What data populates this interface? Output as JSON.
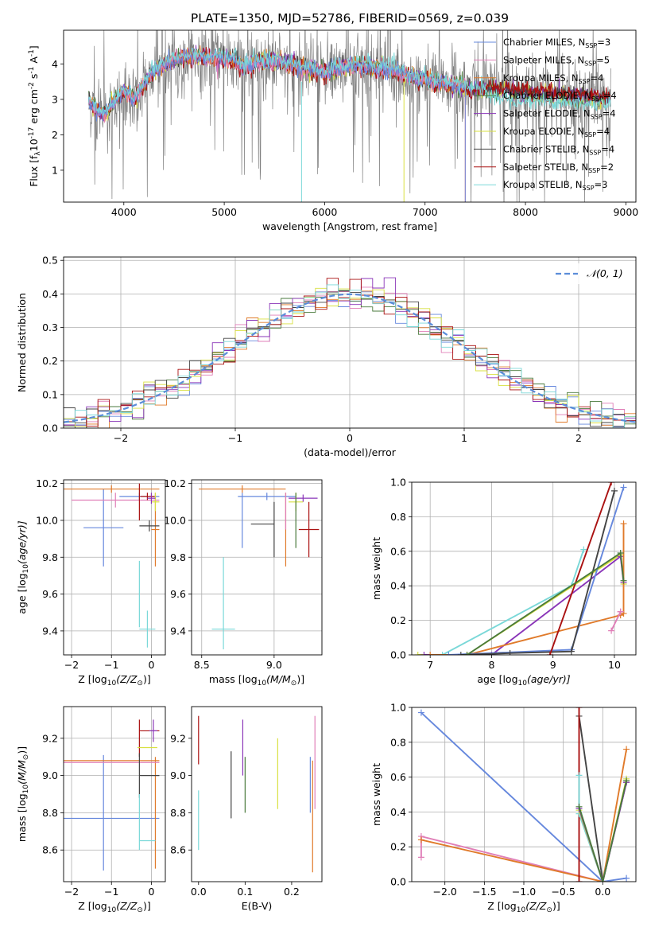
{
  "title": "PLATE=1350, MJD=52786, FIBERID=0569, z=0.039",
  "colors": {
    "Chabrier MILES": "#6688dd",
    "Salpeter MILES": "#e07fb8",
    "Kroupa MILES": "#e07a2a",
    "Chabrier ELODIE": "#4a7a3c",
    "Salpeter ELODIE": "#8a35b8",
    "Kroupa ELODIE": "#d8e040",
    "Chabrier STELIB": "#444444",
    "Salpeter STELIB": "#aa1111",
    "Kroupa STELIB": "#7ad8d8",
    "data": "#7f7f7f",
    "normal": "#5b8dd9",
    "grid": "#b0b0b0"
  },
  "chart_data": [
    {
      "id": "spectrum",
      "type": "line",
      "title": "PLATE=1350, MJD=52786, FIBERID=0569, z=0.039",
      "xlabel": "wavelength [Angstrom, rest frame]",
      "ylabel_pre": "Flux [f",
      "ylabel_sub": "λ",
      "ylabel_mid": "10",
      "ylabel_sup": "-17",
      "ylabel_post": " erg cm",
      "ylabel_sup2": "-2",
      "ylabel_post2": " s",
      "ylabel_sup3": "-1",
      "ylabel_post3": " A",
      "ylabel_sup4": "-1",
      "ylabel_end": "]",
      "xlim": [
        3400,
        9100
      ],
      "ylim": [
        0.1,
        4.95
      ],
      "xticks": [
        4000,
        5000,
        6000,
        7000,
        8000,
        9000
      ],
      "yticks": [
        1,
        2,
        3,
        4
      ],
      "grid": false,
      "legend_position": "top-right",
      "legend": [
        {
          "pre": "Chabrier MILES, N",
          "sub": "SSP",
          "post": "=3",
          "model": "Chabrier MILES"
        },
        {
          "pre": "Salpeter MILES, N",
          "sub": "SSP",
          "post": "=5",
          "model": "Salpeter MILES"
        },
        {
          "pre": "Kroupa MILES, N",
          "sub": "SSP",
          "post": "=4",
          "model": "Kroupa MILES"
        },
        {
          "pre": "Chabrier ELODIE, N",
          "sub": "SSP",
          "post": "=4",
          "model": "Chabrier ELODIE"
        },
        {
          "pre": "Salpeter ELODIE, N",
          "sub": "SSP",
          "post": "=4",
          "model": "Salpeter ELODIE"
        },
        {
          "pre": "Kroupa ELODIE, N",
          "sub": "SSP",
          "post": "=4",
          "model": "Kroupa ELODIE"
        },
        {
          "pre": "Chabrier STELIB, N",
          "sub": "SSP",
          "post": "=4",
          "model": "Chabrier STELIB"
        },
        {
          "pre": "Salpeter STELIB, N",
          "sub": "SSP",
          "post": "=2",
          "model": "Salpeter STELIB"
        },
        {
          "pre": "Kroupa STELIB, N",
          "sub": "SSP",
          "post": "=3",
          "model": "Kroupa STELIB"
        }
      ],
      "data_range": [
        3650,
        8850
      ],
      "continuum": [
        [
          3650,
          2.9
        ],
        [
          3800,
          2.55
        ],
        [
          4000,
          3.25
        ],
        [
          4100,
          3.0
        ],
        [
          4300,
          3.8
        ],
        [
          4500,
          4.1
        ],
        [
          4700,
          4.2
        ],
        [
          4900,
          4.15
        ],
        [
          5100,
          4.1
        ],
        [
          5200,
          3.9
        ],
        [
          5400,
          4.1
        ],
        [
          5600,
          4.0
        ],
        [
          5800,
          3.85
        ],
        [
          6000,
          3.75
        ],
        [
          6300,
          3.95
        ],
        [
          6600,
          3.85
        ],
        [
          6900,
          3.6
        ],
        [
          7100,
          3.45
        ],
        [
          7400,
          3.3
        ],
        [
          7700,
          3.25
        ],
        [
          8000,
          3.15
        ],
        [
          8300,
          3.1
        ],
        [
          8600,
          3.05
        ],
        [
          8850,
          3.0
        ]
      ],
      "model_ends": {
        "Kroupa MILES": 7400,
        "Salpeter MILES": 7400,
        "Chabrier MILES": 7400
      }
    },
    {
      "id": "residuals",
      "type": "histogram",
      "xlabel": "(data-model)/error",
      "ylabel": "Normed distribution",
      "xlim": [
        -2.5,
        2.5
      ],
      "ylim": [
        0,
        0.51
      ],
      "xticks": [
        -2,
        -1,
        0,
        1,
        2
      ],
      "yticks": [
        0.0,
        0.1,
        0.2,
        0.3,
        0.4,
        0.5
      ],
      "grid": true,
      "legend_position": "top-right",
      "legend": [
        {
          "pre": "𝒩(0, 1)"
        }
      ],
      "bin_width": 0.1
    },
    {
      "id": "age-Z",
      "type": "errorbar",
      "xlabel_pre": "Z [log",
      "xlabel_sub": "10",
      "xlabel_post": "(Z/Z",
      "xlabel_sub2": "⊙",
      "xlabel_end": ")]",
      "ylabel_pre": "age  [log",
      "ylabel_sub": "10",
      "ylabel_post": "(age/yr)]",
      "xlim": [
        -2.2,
        0.35
      ],
      "ylim": [
        9.27,
        10.22
      ],
      "xticks": [
        -2,
        -1,
        0
      ],
      "yticks": [
        9.4,
        9.6,
        9.8,
        10.0,
        10.2
      ],
      "grid": true,
      "points": [
        {
          "model": "Chabrier MILES",
          "x": -0.3,
          "xerr": 0.5,
          "y": 10.13,
          "yerr": 0.02
        },
        {
          "model": "Chabrier MILES",
          "x": -1.2,
          "xerr": 0.5,
          "y": 9.96,
          "yerr": 0.21
        },
        {
          "model": "Salpeter MILES",
          "x": -0.9,
          "xerr": 1.1,
          "y": 10.11,
          "yerr": 0.04
        },
        {
          "model": "Kroupa MILES",
          "x": -1.0,
          "xerr": 1.2,
          "y": 10.17,
          "yerr": 0.02
        },
        {
          "model": "Kroupa MILES",
          "x": 0.1,
          "xerr": 0.1,
          "y": 9.95,
          "yerr": 0.2
        },
        {
          "model": "Salpeter STELIB",
          "x": -0.3,
          "xerr": 0.0,
          "y": 10.1,
          "yerr": 0.1
        },
        {
          "model": "Salpeter STELIB",
          "x": -0.1,
          "xerr": 0.18,
          "y": 10.13,
          "yerr": 0.02
        },
        {
          "model": "Chabrier STELIB",
          "x": -0.05,
          "xerr": 0.25,
          "y": 9.97,
          "yerr": 0.03
        },
        {
          "model": "Kroupa STELIB",
          "x": -0.1,
          "xerr": 0.2,
          "y": 9.41,
          "yerr": 0.1
        },
        {
          "model": "Kroupa STELIB",
          "x": -0.3,
          "xerr": 0.0,
          "y": 9.6,
          "yerr": 0.18
        },
        {
          "model": "Kroupa ELODIE",
          "x": 0.1,
          "xerr": 0.1,
          "y": 10.1,
          "yerr": 0.05
        },
        {
          "model": "Salpeter ELODIE",
          "x": 0.0,
          "xerr": 0.1,
          "y": 10.12,
          "yerr": 0.03
        }
      ]
    },
    {
      "id": "age-mass",
      "type": "errorbar",
      "xlabel_pre": "mass [log",
      "xlabel_sub": "10",
      "xlabel_post": "(M/M",
      "xlabel_sub2": "⊙",
      "xlabel_end": ")]",
      "ylabel": "",
      "xlim": [
        8.43,
        9.33
      ],
      "ylim": [
        9.27,
        10.22
      ],
      "xticks": [
        8.5,
        9.0
      ],
      "yticks": [
        9.4,
        9.6,
        9.8,
        10.0,
        10.2
      ],
      "grid": true,
      "points": [
        {
          "model": "Chabrier MILES",
          "x": 8.78,
          "xerr": 0.0,
          "y": 10.0,
          "yerr": 0.15
        },
        {
          "model": "Chabrier MILES",
          "x": 8.95,
          "xerr": 0.2,
          "y": 10.13,
          "yerr": 0.02
        },
        {
          "model": "Kroupa MILES",
          "x": 8.78,
          "xerr": 0.3,
          "y": 10.17,
          "yerr": 0.02
        },
        {
          "model": "Kroupa MILES",
          "x": 9.08,
          "xerr": 0.0,
          "y": 9.95,
          "yerr": 0.2
        },
        {
          "model": "Salpeter MILES",
          "x": 9.08,
          "xerr": 0.0,
          "y": 10.05,
          "yerr": 0.1
        },
        {
          "model": "Chabrier STELIB",
          "x": 8.92,
          "xerr": 0.08,
          "y": 9.98,
          "yerr": 0.0
        },
        {
          "model": "Chabrier STELIB",
          "x": 9.0,
          "xerr": 0.0,
          "y": 9.95,
          "yerr": 0.15
        },
        {
          "model": "Salpeter STELIB",
          "x": 9.24,
          "xerr": 0.07,
          "y": 9.95,
          "yerr": 0.15
        },
        {
          "model": "Salpeter ELODIE",
          "x": 9.2,
          "xerr": 0.1,
          "y": 10.12,
          "yerr": 0.02
        },
        {
          "model": "Kroupa ELODIE",
          "x": 9.15,
          "xerr": 0.05,
          "y": 10.1,
          "yerr": 0.05
        },
        {
          "model": "Chabrier ELODIE",
          "x": 9.15,
          "xerr": 0.0,
          "y": 10.0,
          "yerr": 0.15
        },
        {
          "model": "Kroupa STELIB",
          "x": 8.65,
          "xerr": 0.08,
          "y": 9.41,
          "yerr": 0.0
        },
        {
          "model": "Kroupa STELIB",
          "x": 8.65,
          "xerr": 0.0,
          "y": 9.55,
          "yerr": 0.25
        }
      ]
    },
    {
      "id": "mw-age",
      "type": "line",
      "xlabel_pre": "age  [log",
      "xlabel_sub": "10",
      "xlabel_post": "(age/yr)]",
      "ylabel": "mass weight",
      "xlim": [
        6.7,
        10.35
      ],
      "ylim": [
        0,
        1.0
      ],
      "xticks": [
        7,
        8,
        9,
        10
      ],
      "yticks": [
        0.0,
        0.2,
        0.4,
        0.6,
        0.8,
        1.0
      ],
      "grid": true,
      "series": [
        {
          "model": "Kroupa STELIB",
          "x": [
            7.2,
            9.3,
            9.5
          ],
          "y": [
            0.0,
            0.4,
            0.61
          ]
        },
        {
          "model": "Kroupa ELODIE",
          "x": [
            6.8,
            7.6,
            10.1,
            10.15
          ],
          "y": [
            0.0,
            0.0,
            0.58,
            0.41
          ]
        },
        {
          "model": "Salpeter ELODIE",
          "x": [
            6.9,
            8.0,
            10.1,
            10.15
          ],
          "y": [
            0.0,
            0.0,
            0.57,
            0.42
          ]
        },
        {
          "model": "Kroupa MILES",
          "x": [
            7.0,
            7.6,
            10.1,
            10.15,
            10.15
          ],
          "y": [
            0.0,
            0.0,
            0.23,
            0.24,
            0.76
          ]
        },
        {
          "model": "Salpeter MILES",
          "x": [
            9.95,
            10.1,
            10.1
          ],
          "y": [
            0.14,
            0.25,
            0.25
          ]
        },
        {
          "model": "Chabrier MILES",
          "x": [
            7.3,
            9.3,
            10.15
          ],
          "y": [
            0.0,
            0.03,
            0.97
          ]
        },
        {
          "model": "Chabrier STELIB",
          "x": [
            7.5,
            8.3,
            9.3,
            10.0
          ],
          "y": [
            0.0,
            0.01,
            0.02,
            0.95
          ]
        },
        {
          "model": "Salpeter STELIB",
          "x": [
            8.95,
            9.95
          ],
          "y": [
            0.0,
            1.0
          ]
        },
        {
          "model": "Chabrier ELODIE",
          "x": [
            7.6,
            10.1,
            10.15
          ],
          "y": [
            0.0,
            0.59,
            0.43
          ]
        }
      ]
    },
    {
      "id": "mass-Z",
      "type": "errorbar",
      "xlabel_pre": "Z [log",
      "xlabel_sub": "10",
      "xlabel_post": "(Z/Z",
      "xlabel_sub2": "⊙",
      "xlabel_end": ")]",
      "ylabel_pre": "mass [log",
      "ylabel_sub": "10",
      "ylabel_post": "(M/M",
      "ylabel_sub2": "⊙",
      "ylabel_end": ")]",
      "xlim": [
        -2.2,
        0.35
      ],
      "ylim": [
        8.43,
        9.37
      ],
      "xticks": [
        -2,
        -1,
        0
      ],
      "yticks": [
        8.6,
        8.8,
        9.0,
        9.2
      ],
      "grid": true,
      "points": [
        {
          "model": "Chabrier MILES",
          "x": -1.0,
          "xerr": 1.2,
          "y": 8.77,
          "yerr": 0.0
        },
        {
          "model": "Chabrier MILES",
          "x": -1.2,
          "xerr": 0.0,
          "y": 8.8,
          "yerr": 0.31
        },
        {
          "model": "Kroupa MILES",
          "x": -1.0,
          "xerr": 1.2,
          "y": 9.08,
          "yerr": 0.0
        },
        {
          "model": "Kroupa MILES",
          "x": 0.1,
          "xerr": 0.0,
          "y": 8.8,
          "yerr": 0.3
        },
        {
          "model": "Salpeter MILES",
          "x": -1.0,
          "xerr": 1.2,
          "y": 9.07,
          "yerr": 0.0
        },
        {
          "model": "Salpeter STELIB",
          "x": -0.3,
          "xerr": 0.0,
          "y": 9.2,
          "yerr": 0.1
        },
        {
          "model": "Salpeter STELIB",
          "x": -0.05,
          "xerr": 0.25,
          "y": 9.24,
          "yerr": 0.0
        },
        {
          "model": "Chabrier STELIB",
          "x": -0.05,
          "xerr": 0.25,
          "y": 9.0,
          "yerr": 0.0
        },
        {
          "model": "Chabrier STELIB",
          "x": -0.3,
          "xerr": 0.0,
          "y": 9.0,
          "yerr": 0.12
        },
        {
          "model": "Kroupa ELODIE",
          "x": -0.1,
          "xerr": 0.25,
          "y": 9.15,
          "yerr": 0.0
        },
        {
          "model": "Salpeter ELODIE",
          "x": 0.05,
          "xerr": 0.1,
          "y": 9.24,
          "yerr": 0.06
        },
        {
          "model": "Kroupa STELIB",
          "x": -0.1,
          "xerr": 0.2,
          "y": 8.65,
          "yerr": 0.0
        },
        {
          "model": "Kroupa STELIB",
          "x": -0.3,
          "xerr": 0.0,
          "y": 8.75,
          "yerr": 0.15
        }
      ]
    },
    {
      "id": "mass-ebv",
      "type": "errorbar",
      "xlabel": "E(B-V)",
      "ylabel": "",
      "xlim": [
        -0.015,
        0.265
      ],
      "ylim": [
        8.43,
        9.37
      ],
      "xticks": [
        0.0,
        0.1,
        0.2
      ],
      "yticks": [
        8.6,
        8.8,
        9.0,
        9.2
      ],
      "grid": false,
      "points": [
        {
          "model": "Salpeter STELIB",
          "x": 0.0,
          "xerr": 0.0,
          "y": 9.19,
          "yerr": 0.13
        },
        {
          "model": "Kroupa STELIB",
          "x": 0.0,
          "xerr": 0.0,
          "y": 8.76,
          "yerr": 0.16
        },
        {
          "model": "Chabrier STELIB",
          "x": 0.07,
          "xerr": 0.0,
          "y": 8.95,
          "yerr": 0.18
        },
        {
          "model": "Salpeter ELODIE",
          "x": 0.095,
          "xerr": 0.0,
          "y": 9.15,
          "yerr": 0.15
        },
        {
          "model": "Chabrier ELODIE",
          "x": 0.1,
          "xerr": 0.0,
          "y": 8.95,
          "yerr": 0.15
        },
        {
          "model": "Kroupa ELODIE",
          "x": 0.17,
          "xerr": 0.0,
          "y": 9.01,
          "yerr": 0.19
        },
        {
          "model": "Kroupa MILES",
          "x": 0.245,
          "xerr": 0.0,
          "y": 8.78,
          "yerr": 0.3
        },
        {
          "model": "Salpeter MILES",
          "x": 0.25,
          "xerr": 0.0,
          "y": 9.07,
          "yerr": 0.25
        },
        {
          "model": "Chabrier MILES",
          "x": 0.24,
          "xerr": 0.0,
          "y": 8.95,
          "yerr": 0.15
        }
      ]
    },
    {
      "id": "mw-Z",
      "type": "line",
      "xlabel_pre": "Z [log",
      "xlabel_sub": "10",
      "xlabel_post": "(Z/Z",
      "xlabel_sub2": "⊙",
      "xlabel_end": ")]",
      "ylabel": "mass weight",
      "xlim": [
        -2.42,
        0.42
      ],
      "ylim": [
        0,
        1.0
      ],
      "xticks": [
        -2.0,
        -1.5,
        -1.0,
        -0.5,
        0.0
      ],
      "yticks": [
        0.0,
        0.2,
        0.4,
        0.6,
        0.8,
        1.0
      ],
      "grid": true,
      "series": [
        {
          "model": "Chabrier MILES",
          "x": [
            -2.3,
            0.0,
            0.3
          ],
          "y": [
            0.97,
            0.0,
            0.02
          ]
        },
        {
          "model": "Salpeter MILES",
          "x": [
            -2.3,
            -2.3,
            0.0
          ],
          "y": [
            0.14,
            0.26,
            0.0
          ]
        },
        {
          "model": "Kroupa MILES",
          "x": [
            -2.3,
            0.0,
            0.3
          ],
          "y": [
            0.24,
            0.0,
            0.76
          ]
        },
        {
          "model": "Chabrier STELIB",
          "x": [
            -0.3,
            0.0,
            0.3
          ],
          "y": [
            0.95,
            0.0,
            0.57
          ]
        },
        {
          "model": "Salpeter STELIB",
          "x": [
            -0.3,
            -0.3
          ],
          "y": [
            0.0,
            1.0
          ]
        },
        {
          "model": "Kroupa STELIB",
          "x": [
            -0.3,
            -0.3,
            0.0
          ],
          "y": [
            0.61,
            0.39,
            0.0
          ]
        },
        {
          "model": "Kroupa ELODIE",
          "x": [
            -0.3,
            0.0,
            0.3
          ],
          "y": [
            0.41,
            0.0,
            0.59
          ]
        },
        {
          "model": "Salpeter ELODIE",
          "x": [
            -0.3,
            0.0,
            0.3
          ],
          "y": [
            0.42,
            0.0,
            0.57
          ]
        },
        {
          "model": "Chabrier ELODIE",
          "x": [
            -0.3,
            0.0,
            0.3
          ],
          "y": [
            0.43,
            0.0,
            0.58
          ]
        }
      ]
    }
  ]
}
